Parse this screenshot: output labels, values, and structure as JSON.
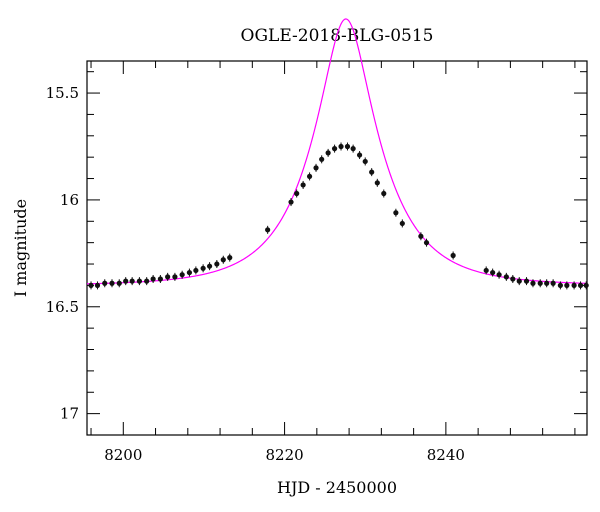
{
  "chart_data": {
    "type": "scatter",
    "title": "OGLE-2018-BLG-0515",
    "xlabel": "HJD - 2450000",
    "ylabel": "I magnitude",
    "xlim": [
      8195.5,
      8257.5
    ],
    "ylim": [
      17.1,
      15.35
    ],
    "y_inverted": true,
    "x_ticks": [
      8200,
      8220,
      8240
    ],
    "y_ticks": [
      15.5,
      16,
      16.5,
      17
    ],
    "x_tick_labels": [
      "8200",
      "8220",
      "8240"
    ],
    "y_tick_labels": [
      "15.5",
      "16",
      "16.5",
      "17"
    ],
    "grid": false,
    "model_curve": {
      "color": "#ff00ff",
      "description_type": "PSPL",
      "t0": 8227.6,
      "u0": 0.33,
      "tE": 8.3,
      "baseline_mag": 16.4
    },
    "point_color": "#111111",
    "series": [
      {
        "name": "",
        "x": [
          8196.0,
          8196.8,
          8197.7,
          8198.6,
          8199.5,
          8200.3,
          8201.1,
          8202.0,
          8202.9,
          8203.7,
          8204.6,
          8205.5,
          8206.4,
          8207.3,
          8208.2,
          8209.0,
          8209.9,
          8210.7,
          8211.6,
          8212.4,
          8213.2,
          8217.9,
          8220.8,
          8221.5,
          8222.3,
          8223.1,
          8223.9,
          8224.6,
          8225.4,
          8226.2,
          8227.0,
          8227.8,
          8228.5,
          8229.3,
          8230.0,
          8230.8,
          8231.5,
          8232.3,
          8233.8,
          8234.6,
          8236.9,
          8237.6,
          8240.9,
          8245.0,
          8245.8,
          8246.6,
          8247.5,
          8248.3,
          8249.1,
          8250.0,
          8250.8,
          8251.7,
          8252.5,
          8253.3,
          8254.2,
          8255.0,
          8255.9,
          8256.7,
          8257.4
        ],
        "y": [
          16.4,
          16.4,
          16.39,
          16.39,
          16.39,
          16.38,
          16.38,
          16.38,
          16.38,
          16.37,
          16.37,
          16.36,
          16.36,
          16.35,
          16.34,
          16.33,
          16.32,
          16.31,
          16.3,
          16.28,
          16.27,
          16.14,
          16.01,
          15.97,
          15.93,
          15.89,
          15.85,
          15.81,
          15.78,
          15.76,
          15.75,
          15.75,
          15.76,
          15.79,
          15.82,
          15.87,
          15.92,
          15.97,
          16.06,
          16.11,
          16.17,
          16.2,
          16.26,
          16.33,
          16.34,
          16.35,
          16.36,
          16.37,
          16.38,
          16.38,
          16.39,
          16.39,
          16.39,
          16.39,
          16.4,
          16.4,
          16.4,
          16.4,
          16.4
        ]
      }
    ]
  }
}
